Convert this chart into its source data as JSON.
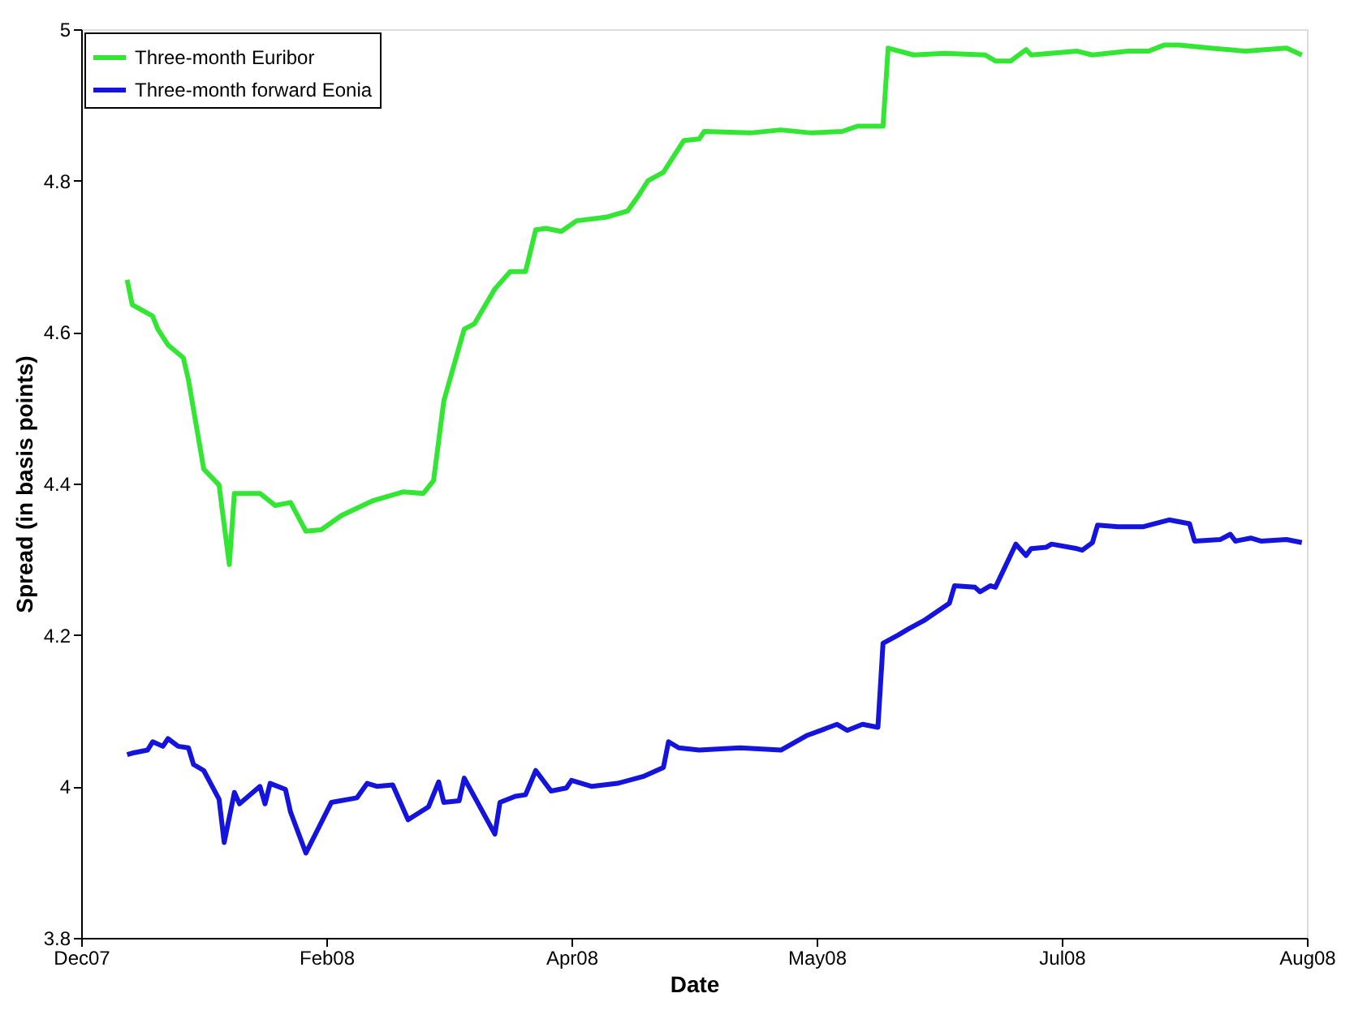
{
  "chart_data": {
    "type": "line",
    "xlabel": "Date",
    "ylabel": "Spread (in basis points)",
    "xlim": [
      "2007-12-28",
      "2008-08-24"
    ],
    "xticks": [
      {
        "value": "2007-12-28",
        "label": "Dec07"
      },
      {
        "value": "2008-02-14",
        "label": "Feb08"
      },
      {
        "value": "2008-04-02",
        "label": "Apr08"
      },
      {
        "value": "2008-05-20",
        "label": "May08"
      },
      {
        "value": "2008-07-07",
        "label": "Jul08"
      },
      {
        "value": "2008-08-24",
        "label": "Aug08"
      }
    ],
    "ylim": [
      3.8,
      5
    ],
    "yticks": [
      3.8,
      4,
      4.2,
      4.4,
      4.6,
      4.8,
      5
    ],
    "grid": false,
    "legend": "top left",
    "line_style": "solid",
    "marker": "none",
    "series": [
      {
        "name": "Three-month Euribor",
        "color": "#33e633",
        "x": [
          "2008-01-06",
          "2008-01-07",
          "2008-01-11",
          "2008-01-12",
          "2008-01-14",
          "2008-01-17",
          "2008-01-18",
          "2008-01-21",
          "2008-01-24",
          "2008-01-26",
          "2008-01-27",
          "2008-02-01",
          "2008-02-04",
          "2008-02-07",
          "2008-02-10",
          "2008-02-13",
          "2008-02-17",
          "2008-02-23",
          "2008-02-29",
          "2008-03-04",
          "2008-03-06",
          "2008-03-08",
          "2008-03-12",
          "2008-03-14",
          "2008-03-18",
          "2008-03-21",
          "2008-03-24",
          "2008-03-26",
          "2008-03-28",
          "2008-03-31",
          "2008-04-03",
          "2008-04-09",
          "2008-04-13",
          "2008-04-15",
          "2008-04-17",
          "2008-04-20",
          "2008-04-24",
          "2008-04-27",
          "2008-04-28",
          "2008-05-07",
          "2008-05-13",
          "2008-05-19",
          "2008-05-25",
          "2008-05-28",
          "2008-06-02",
          "2008-06-03",
          "2008-06-08",
          "2008-06-14",
          "2008-06-22",
          "2008-06-24",
          "2008-06-27",
          "2008-06-30",
          "2008-07-01",
          "2008-07-10",
          "2008-07-13",
          "2008-07-20",
          "2008-07-24",
          "2008-07-27",
          "2008-07-30",
          "2008-08-05",
          "2008-08-12",
          "2008-08-20",
          "2008-08-23"
        ],
        "values": [
          4.669,
          4.636,
          4.621,
          4.604,
          4.583,
          4.566,
          4.537,
          4.419,
          4.398,
          4.293,
          4.387,
          4.387,
          4.371,
          4.375,
          4.337,
          4.339,
          4.358,
          4.377,
          4.389,
          4.387,
          4.404,
          4.509,
          4.604,
          4.611,
          4.657,
          4.68,
          4.68,
          4.735,
          4.737,
          4.733,
          4.747,
          4.752,
          4.76,
          4.779,
          4.8,
          4.811,
          4.853,
          4.855,
          4.865,
          4.863,
          4.867,
          4.863,
          4.865,
          4.872,
          4.872,
          4.975,
          4.966,
          4.968,
          4.966,
          4.958,
          4.958,
          4.973,
          4.966,
          4.971,
          4.966,
          4.971,
          4.971,
          4.979,
          4.979,
          4.975,
          4.971,
          4.975,
          4.966
        ]
      },
      {
        "name": "Three-month forward Eonia",
        "color": "#1414dc",
        "x": [
          "2008-01-06",
          "2008-01-07",
          "2008-01-10",
          "2008-01-11",
          "2008-01-13",
          "2008-01-14",
          "2008-01-16",
          "2008-01-18",
          "2008-01-19",
          "2008-01-21",
          "2008-01-24",
          "2008-01-25",
          "2008-01-27",
          "2008-01-28",
          "2008-02-01",
          "2008-02-02",
          "2008-02-03",
          "2008-02-06",
          "2008-02-07",
          "2008-02-10",
          "2008-02-15",
          "2008-02-20",
          "2008-02-22",
          "2008-02-24",
          "2008-02-27",
          "2008-03-01",
          "2008-03-05",
          "2008-03-07",
          "2008-03-08",
          "2008-03-11",
          "2008-03-12",
          "2008-03-18",
          "2008-03-19",
          "2008-03-22",
          "2008-03-24",
          "2008-03-26",
          "2008-03-29",
          "2008-04-01",
          "2008-04-02",
          "2008-04-06",
          "2008-04-11",
          "2008-04-16",
          "2008-04-20",
          "2008-04-21",
          "2008-04-23",
          "2008-04-27",
          "2008-05-05",
          "2008-05-13",
          "2008-05-18",
          "2008-05-24",
          "2008-05-26",
          "2008-05-29",
          "2008-06-01",
          "2008-06-02",
          "2008-06-05",
          "2008-06-07",
          "2008-06-10",
          "2008-06-15",
          "2008-06-16",
          "2008-06-20",
          "2008-06-21",
          "2008-06-23",
          "2008-06-24",
          "2008-06-28",
          "2008-06-30",
          "2008-07-01",
          "2008-07-04",
          "2008-07-05",
          "2008-07-10",
          "2008-07-11",
          "2008-07-13",
          "2008-07-14",
          "2008-07-18",
          "2008-07-23",
          "2008-07-28",
          "2008-08-01",
          "2008-08-02",
          "2008-08-07",
          "2008-08-09",
          "2008-08-10",
          "2008-08-13",
          "2008-08-15",
          "2008-08-20",
          "2008-08-23"
        ],
        "values": [
          4.042,
          4.044,
          4.048,
          4.059,
          4.053,
          4.063,
          4.053,
          4.051,
          4.029,
          4.021,
          3.983,
          3.926,
          3.992,
          3.977,
          4.0,
          3.977,
          4.004,
          3.996,
          3.966,
          3.912,
          3.979,
          3.985,
          4.004,
          4.0,
          4.002,
          3.956,
          3.973,
          4.006,
          3.979,
          3.981,
          4.011,
          3.937,
          3.979,
          3.987,
          3.989,
          4.021,
          3.994,
          3.998,
          4.008,
          4.0,
          4.004,
          4.013,
          4.025,
          4.059,
          4.051,
          4.048,
          4.051,
          4.048,
          4.067,
          4.082,
          4.074,
          4.082,
          4.078,
          4.189,
          4.2,
          4.208,
          4.219,
          4.242,
          4.265,
          4.263,
          4.257,
          4.265,
          4.263,
          4.32,
          4.305,
          4.314,
          4.316,
          4.32,
          4.314,
          4.312,
          4.322,
          4.345,
          4.343,
          4.343,
          4.352,
          4.347,
          4.324,
          4.326,
          4.333,
          4.324,
          4.328,
          4.324,
          4.326,
          4.322
        ]
      }
    ]
  }
}
